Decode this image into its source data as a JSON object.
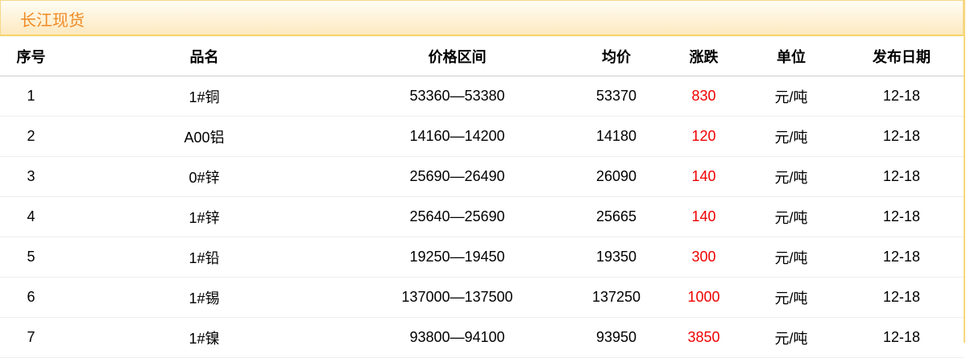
{
  "title": "长江现货",
  "headers": [
    "序号",
    "品名",
    "价格区间",
    "均价",
    "涨跌",
    "单位",
    "发布日期"
  ],
  "rows": [
    [
      "1",
      "1#铜",
      "53360—53380",
      "53370",
      "830",
      "元/吨",
      "12-18"
    ],
    [
      "2",
      "A00铝",
      "14160—14200",
      "14180",
      "120",
      "元/吨",
      "12-18"
    ],
    [
      "3",
      "0#锌",
      "25690—26490",
      "26090",
      "140",
      "元/吨",
      "12-18"
    ],
    [
      "4",
      "1#锌",
      "25640—25690",
      "25665",
      "140",
      "元/吨",
      "12-18"
    ],
    [
      "5",
      "1#铅",
      "19250—19450",
      "19350",
      "300",
      "元/吨",
      "12-18"
    ],
    [
      "6",
      "1#锡",
      "137000—137500",
      "137250",
      "1000",
      "元/吨",
      "12-18"
    ],
    [
      "7",
      "1#镍",
      "93800—94100",
      "93950",
      "3850",
      "元/吨",
      "12-18"
    ]
  ],
  "colors": {
    "title": "#f08a24",
    "change": "#ee0000"
  }
}
